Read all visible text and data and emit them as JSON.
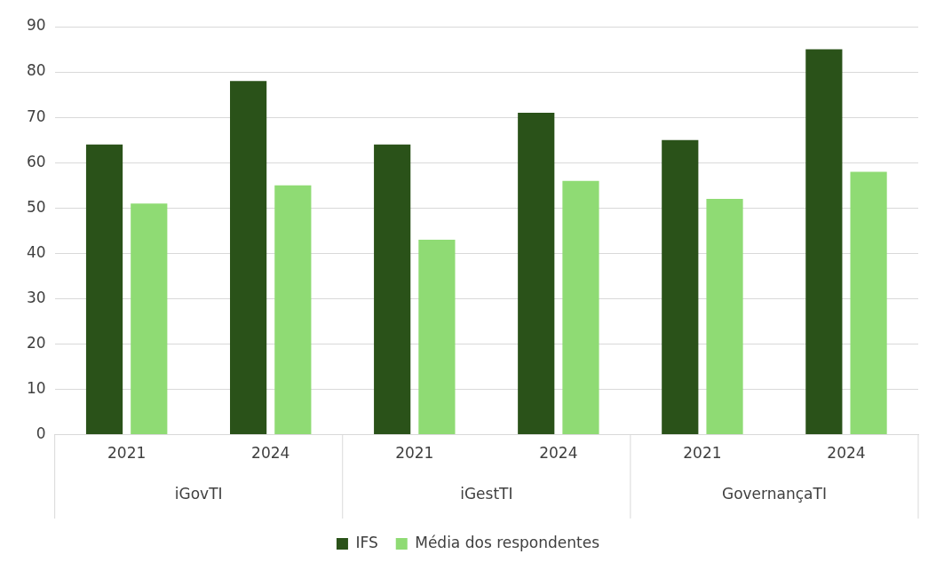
{
  "chart_data": {
    "type": "bar",
    "categories": [
      "2021",
      "2024",
      "2021",
      "2024",
      "2021",
      "2024"
    ],
    "series": [
      {
        "name": "IFS",
        "color": "#2a5219",
        "values": [
          64,
          78,
          64,
          71,
          65,
          85
        ]
      },
      {
        "name": "Média dos respondentes",
        "color": "#8fdb74",
        "values": [
          51,
          55,
          43,
          56,
          52,
          58
        ]
      }
    ],
    "annotations": [
      "iGovTI",
      "iGestTI",
      "GovernançaTI"
    ],
    "ylim": [
      0,
      90
    ],
    "yticks": [
      0,
      10,
      20,
      30,
      40,
      50,
      60,
      70,
      80,
      90
    ],
    "grid": "y",
    "legend": "bottom"
  }
}
